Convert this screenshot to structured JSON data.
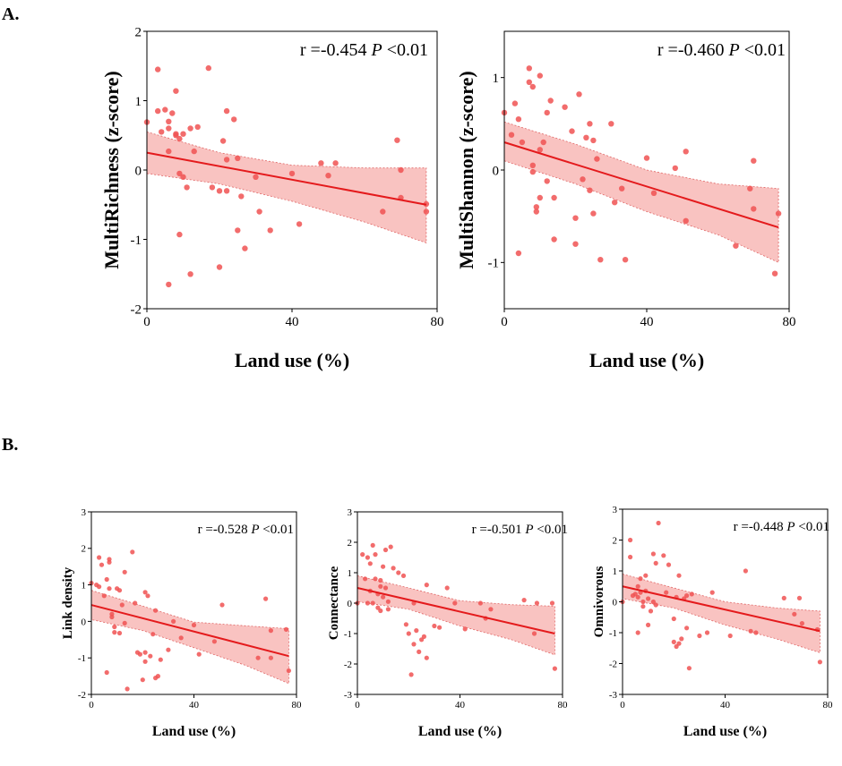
{
  "panels": {
    "a": "A.",
    "b": "B."
  },
  "chart_data": [
    {
      "type": "scatter",
      "id": "richness",
      "xlabel": "Land use (%)",
      "ylabel": "MultiRichness (z-score)",
      "stat_r": "r =-0.454",
      "stat_p": "P",
      "stat_rest": " <0.01",
      "xlim": [
        0,
        80
      ],
      "ylim": [
        -2,
        2
      ],
      "xticks": [
        0,
        40,
        80
      ],
      "yticks": [
        -2,
        -1,
        0,
        1,
        2
      ],
      "fit": {
        "x0": 0,
        "y0": 0.25,
        "x1": 77,
        "y1": -0.5
      },
      "band_upper": [
        [
          0,
          0.55
        ],
        [
          20,
          0.25
        ],
        [
          40,
          0.07
        ],
        [
          60,
          0.03
        ],
        [
          77,
          0.03
        ]
      ],
      "band_lower": [
        [
          0,
          -0.05
        ],
        [
          20,
          -0.2
        ],
        [
          40,
          -0.45
        ],
        [
          60,
          -0.75
        ],
        [
          77,
          -1.05
        ]
      ],
      "points": [
        [
          0,
          0.69
        ],
        [
          3,
          1.45
        ],
        [
          3,
          0.85
        ],
        [
          4,
          0.55
        ],
        [
          5,
          0.87
        ],
        [
          6,
          0.6
        ],
        [
          6,
          0.27
        ],
        [
          6,
          0.7
        ],
        [
          7,
          0.82
        ],
        [
          8,
          1.14
        ],
        [
          8,
          0.52
        ],
        [
          8,
          0.5
        ],
        [
          9,
          0.45
        ],
        [
          9,
          -0.05
        ],
        [
          10,
          0.52
        ],
        [
          10,
          -0.1
        ],
        [
          11,
          -0.25
        ],
        [
          12,
          0.6
        ],
        [
          13,
          0.27
        ],
        [
          14,
          0.62
        ],
        [
          12,
          -1.5
        ],
        [
          17,
          1.47
        ],
        [
          18,
          -0.25
        ],
        [
          20,
          -0.3
        ],
        [
          21,
          0.42
        ],
        [
          22,
          0.85
        ],
        [
          22,
          0.15
        ],
        [
          22,
          -0.3
        ],
        [
          24,
          0.73
        ],
        [
          25,
          0.17
        ],
        [
          25,
          -0.87
        ],
        [
          26,
          -0.38
        ],
        [
          27,
          -1.13
        ],
        [
          30,
          -0.1
        ],
        [
          31,
          -0.6
        ],
        [
          34,
          -0.87
        ],
        [
          40,
          -0.05
        ],
        [
          42,
          -0.78
        ],
        [
          48,
          0.1
        ],
        [
          50,
          -0.08
        ],
        [
          52,
          0.1
        ],
        [
          65,
          -0.6
        ],
        [
          69,
          0.43
        ],
        [
          70,
          0.0
        ],
        [
          70,
          -0.4
        ],
        [
          77,
          -0.49
        ],
        [
          77,
          -0.6
        ],
        [
          9,
          -0.93
        ],
        [
          6,
          -1.65
        ],
        [
          20,
          -1.4
        ]
      ]
    },
    {
      "type": "scatter",
      "id": "shannon",
      "xlabel": "Land use (%)",
      "ylabel": "MultiShannon (z-score)",
      "stat_r": "r =-0.460",
      "stat_p": "P",
      "stat_rest": " <0.01",
      "xlim": [
        0,
        80
      ],
      "ylim": [
        -1.5,
        1.5
      ],
      "xticks": [
        0,
        40,
        80
      ],
      "yticks": [
        -1,
        0,
        1
      ],
      "fit": {
        "x0": 0,
        "y0": 0.3,
        "x1": 77,
        "y1": -0.62
      },
      "band_upper": [
        [
          0,
          0.52
        ],
        [
          20,
          0.28
        ],
        [
          40,
          0.0
        ],
        [
          60,
          -0.15
        ],
        [
          77,
          -0.2
        ]
      ],
      "band_lower": [
        [
          0,
          0.1
        ],
        [
          20,
          -0.15
        ],
        [
          40,
          -0.45
        ],
        [
          60,
          -0.7
        ],
        [
          77,
          -1.0
        ]
      ],
      "points": [
        [
          0,
          0.62
        ],
        [
          2,
          0.38
        ],
        [
          3,
          0.72
        ],
        [
          4,
          0.55
        ],
        [
          5,
          0.3
        ],
        [
          7,
          1.1
        ],
        [
          7,
          0.95
        ],
        [
          8,
          0.9
        ],
        [
          8,
          0.05
        ],
        [
          8,
          -0.02
        ],
        [
          9,
          -0.45
        ],
        [
          10,
          1.02
        ],
        [
          10,
          0.22
        ],
        [
          10,
          -0.3
        ],
        [
          11,
          0.3
        ],
        [
          12,
          0.62
        ],
        [
          12,
          -0.12
        ],
        [
          13,
          0.75
        ],
        [
          14,
          -0.75
        ],
        [
          14,
          -0.3
        ],
        [
          17,
          0.68
        ],
        [
          19,
          0.42
        ],
        [
          20,
          -0.52
        ],
        [
          20,
          -0.8
        ],
        [
          21,
          0.82
        ],
        [
          22,
          -0.1
        ],
        [
          23,
          0.35
        ],
        [
          24,
          0.5
        ],
        [
          24,
          -0.22
        ],
        [
          25,
          0.32
        ],
        [
          25,
          -0.47
        ],
        [
          26,
          0.12
        ],
        [
          27,
          -0.97
        ],
        [
          30,
          0.5
        ],
        [
          31,
          -0.35
        ],
        [
          33,
          -0.2
        ],
        [
          34,
          -0.97
        ],
        [
          40,
          0.13
        ],
        [
          42,
          -0.25
        ],
        [
          48,
          0.02
        ],
        [
          51,
          -0.55
        ],
        [
          51,
          0.2
        ],
        [
          65,
          -0.82
        ],
        [
          69,
          -0.2
        ],
        [
          70,
          0.1
        ],
        [
          70,
          -0.42
        ],
        [
          76,
          -1.12
        ],
        [
          77,
          -0.47
        ],
        [
          4,
          -0.9
        ],
        [
          9,
          -0.4
        ]
      ]
    },
    {
      "type": "scatter",
      "id": "link-density",
      "xlabel": "Land use (%)",
      "ylabel": "Link density",
      "stat_r": "r =-0.528",
      "stat_p": "P",
      "stat_rest": " <0.01",
      "xlim": [
        0,
        80
      ],
      "ylim": [
        -2,
        3
      ],
      "xticks": [
        0,
        40,
        80
      ],
      "yticks": [
        -2,
        -1,
        0,
        1,
        2,
        3
      ],
      "fit": {
        "x0": 0,
        "y0": 0.45,
        "x1": 77,
        "y1": -0.95
      },
      "band_upper": [
        [
          0,
          0.85
        ],
        [
          20,
          0.42
        ],
        [
          40,
          -0.02
        ],
        [
          60,
          -0.12
        ],
        [
          77,
          -0.2
        ]
      ],
      "band_lower": [
        [
          0,
          0.05
        ],
        [
          20,
          -0.25
        ],
        [
          40,
          -0.72
        ],
        [
          60,
          -1.2
        ],
        [
          77,
          -1.7
        ]
      ],
      "points": [
        [
          0,
          1.05
        ],
        [
          2,
          1.0
        ],
        [
          3,
          1.75
        ],
        [
          4,
          1.55
        ],
        [
          5,
          0.7
        ],
        [
          6,
          -1.4
        ],
        [
          7,
          1.7
        ],
        [
          7,
          1.62
        ],
        [
          7,
          0.9
        ],
        [
          8,
          0.2
        ],
        [
          8,
          0.12
        ],
        [
          9,
          -0.15
        ],
        [
          9,
          -0.3
        ],
        [
          10,
          0.9
        ],
        [
          11,
          0.85
        ],
        [
          11,
          -0.32
        ],
        [
          12,
          0.45
        ],
        [
          13,
          -0.05
        ],
        [
          14,
          -1.85
        ],
        [
          16,
          1.9
        ],
        [
          17,
          0.5
        ],
        [
          18,
          -0.85
        ],
        [
          19,
          -0.9
        ],
        [
          20,
          -1.6
        ],
        [
          21,
          -0.85
        ],
        [
          21,
          0.8
        ],
        [
          22,
          0.7
        ],
        [
          23,
          -0.95
        ],
        [
          24,
          -0.35
        ],
        [
          25,
          0.3
        ],
        [
          25,
          -1.55
        ],
        [
          26,
          -1.5
        ],
        [
          27,
          -1.05
        ],
        [
          30,
          -0.78
        ],
        [
          32,
          0.0
        ],
        [
          35,
          -0.45
        ],
        [
          40,
          -0.1
        ],
        [
          42,
          -0.9
        ],
        [
          48,
          -0.55
        ],
        [
          51,
          0.45
        ],
        [
          65,
          -1.0
        ],
        [
          68,
          0.62
        ],
        [
          70,
          -0.25
        ],
        [
          70,
          -1.0
        ],
        [
          76,
          -0.22
        ],
        [
          77,
          -1.35
        ],
        [
          13,
          1.35
        ],
        [
          6,
          1.15
        ],
        [
          3,
          0.95
        ],
        [
          21,
          -1.1
        ]
      ]
    },
    {
      "type": "scatter",
      "id": "connectance",
      "xlabel": "Land use (%)",
      "ylabel": "Connectance",
      "stat_r": "r =-0.501",
      "stat_p": "P",
      "stat_rest": " <0.01",
      "xlim": [
        0,
        80
      ],
      "ylim": [
        -3,
        3
      ],
      "xticks": [
        0,
        40,
        80
      ],
      "yticks": [
        -3,
        -2,
        -1,
        0,
        1,
        2,
        3
      ],
      "fit": {
        "x0": 0,
        "y0": 0.5,
        "x1": 77,
        "y1": -1.0
      },
      "band_upper": [
        [
          0,
          0.9
        ],
        [
          20,
          0.5
        ],
        [
          40,
          0.08
        ],
        [
          60,
          -0.05
        ],
        [
          77,
          -0.1
        ]
      ],
      "band_lower": [
        [
          0,
          0.05
        ],
        [
          20,
          -0.2
        ],
        [
          40,
          -0.75
        ],
        [
          60,
          -1.2
        ],
        [
          77,
          -1.7
        ]
      ],
      "points": [
        [
          0,
          0.0
        ],
        [
          2,
          1.6
        ],
        [
          3,
          0.8
        ],
        [
          4,
          1.5
        ],
        [
          5,
          1.3
        ],
        [
          6,
          1.9
        ],
        [
          6,
          0.0
        ],
        [
          7,
          1.6
        ],
        [
          7,
          0.8
        ],
        [
          8,
          0.3
        ],
        [
          8,
          -0.15
        ],
        [
          9,
          0.75
        ],
        [
          9,
          -0.25
        ],
        [
          10,
          1.2
        ],
        [
          10,
          0.2
        ],
        [
          11,
          1.75
        ],
        [
          11,
          0.5
        ],
        [
          12,
          0.05
        ],
        [
          13,
          1.85
        ],
        [
          14,
          1.15
        ],
        [
          16,
          1.0
        ],
        [
          18,
          0.9
        ],
        [
          19,
          -0.7
        ],
        [
          20,
          -1.0
        ],
        [
          21,
          -2.35
        ],
        [
          22,
          -1.35
        ],
        [
          22,
          0.0
        ],
        [
          23,
          -0.9
        ],
        [
          24,
          -1.6
        ],
        [
          25,
          -1.2
        ],
        [
          26,
          -1.1
        ],
        [
          27,
          -1.8
        ],
        [
          30,
          -0.75
        ],
        [
          32,
          -0.8
        ],
        [
          35,
          0.5
        ],
        [
          38,
          0.0
        ],
        [
          42,
          -0.85
        ],
        [
          48,
          0.0
        ],
        [
          50,
          -0.5
        ],
        [
          52,
          -0.2
        ],
        [
          65,
          0.1
        ],
        [
          69,
          -1.0
        ],
        [
          70,
          0.0
        ],
        [
          76,
          0.0
        ],
        [
          77,
          -2.15
        ],
        [
          5,
          0.4
        ],
        [
          9,
          0.55
        ],
        [
          12,
          -0.2
        ],
        [
          4,
          0.0
        ],
        [
          27,
          0.6
        ]
      ]
    },
    {
      "type": "scatter",
      "id": "omnivorous",
      "xlabel": "Land use (%)",
      "ylabel": "Omnivorous",
      "stat_r": "r =-0.448",
      "stat_p": "P",
      "stat_rest": " <0.01",
      "xlim": [
        0,
        80
      ],
      "ylim": [
        -3,
        3
      ],
      "xticks": [
        0,
        40,
        80
      ],
      "yticks": [
        -3,
        -2,
        -1,
        0,
        1,
        2,
        3
      ],
      "fit": {
        "x0": 0,
        "y0": 0.5,
        "x1": 77,
        "y1": -0.95
      },
      "band_upper": [
        [
          0,
          0.9
        ],
        [
          20,
          0.45
        ],
        [
          40,
          0.0
        ],
        [
          60,
          -0.2
        ],
        [
          77,
          -0.3
        ]
      ],
      "band_lower": [
        [
          0,
          0.1
        ],
        [
          20,
          -0.2
        ],
        [
          40,
          -0.75
        ],
        [
          60,
          -1.2
        ],
        [
          77,
          -1.65
        ]
      ],
      "points": [
        [
          0,
          0.0
        ],
        [
          3,
          2.0
        ],
        [
          3,
          1.45
        ],
        [
          4,
          0.2
        ],
        [
          5,
          0.25
        ],
        [
          6,
          0.5
        ],
        [
          6,
          -1.0
        ],
        [
          7,
          0.75
        ],
        [
          7,
          0.3
        ],
        [
          8,
          0.0
        ],
        [
          8,
          -0.15
        ],
        [
          9,
          0.85
        ],
        [
          9,
          0.35
        ],
        [
          10,
          0.1
        ],
        [
          10,
          -0.75
        ],
        [
          11,
          -0.3
        ],
        [
          12,
          1.55
        ],
        [
          13,
          1.25
        ],
        [
          13,
          -0.1
        ],
        [
          14,
          2.55
        ],
        [
          16,
          1.5
        ],
        [
          17,
          0.3
        ],
        [
          18,
          1.2
        ],
        [
          20,
          -1.3
        ],
        [
          21,
          -1.45
        ],
        [
          21,
          0.15
        ],
        [
          22,
          -1.35
        ],
        [
          22,
          0.85
        ],
        [
          23,
          -1.2
        ],
        [
          24,
          0.1
        ],
        [
          25,
          -0.85
        ],
        [
          25,
          0.2
        ],
        [
          26,
          -2.15
        ],
        [
          27,
          0.25
        ],
        [
          30,
          -1.1
        ],
        [
          33,
          -1.0
        ],
        [
          35,
          0.3
        ],
        [
          42,
          -1.1
        ],
        [
          48,
          1.0
        ],
        [
          50,
          -0.95
        ],
        [
          52,
          -1.0
        ],
        [
          63,
          0.12
        ],
        [
          67,
          -0.4
        ],
        [
          69,
          0.12
        ],
        [
          70,
          -0.7
        ],
        [
          76,
          -0.9
        ],
        [
          77,
          -1.95
        ],
        [
          6,
          0.15
        ],
        [
          12,
          0.0
        ],
        [
          20,
          -0.55
        ]
      ]
    }
  ]
}
